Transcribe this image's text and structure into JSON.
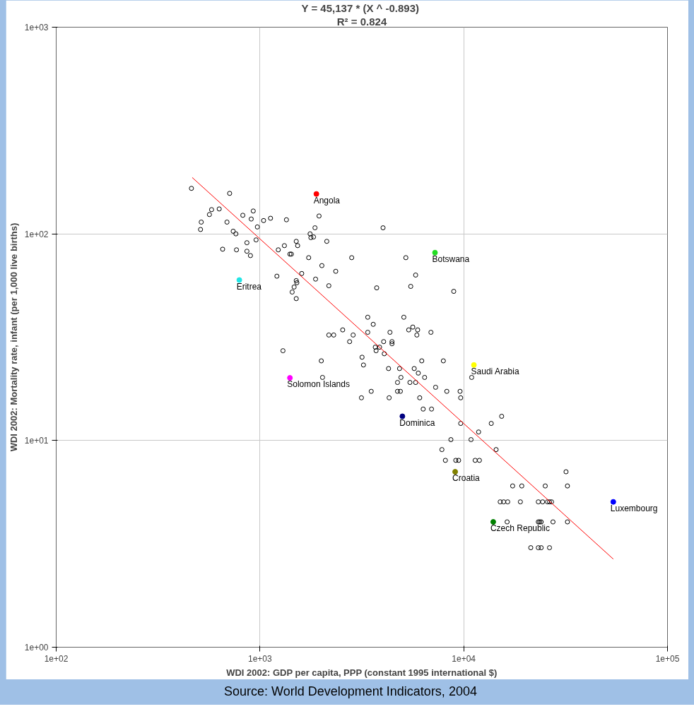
{
  "chart_data": {
    "type": "scatter",
    "title": "Y = 45,137 *  (X ^ -0.893)",
    "subtitle": "R² = 0.824",
    "xlabel": "WDI 2002: GDP per capita, PPP (constant 1995 international $)",
    "ylabel": "WDI 2002: Mortality rate, infant (per 1,000 live births)",
    "annotations": [
      "Source: World Development Indicators, 2004"
    ],
    "log": "xy",
    "grid": true,
    "marker": "circle",
    "xlim": [
      100,
      100000
    ],
    "ylim": [
      1,
      1000
    ],
    "xticks": [
      {
        "value": 100,
        "label": "1e+02"
      },
      {
        "value": 1000,
        "label": "1e+03"
      },
      {
        "value": 10000,
        "label": "1e+04"
      },
      {
        "value": 100000,
        "label": "1e+05"
      }
    ],
    "yticks": [
      {
        "value": 1,
        "label": "1e+00"
      },
      {
        "value": 10,
        "label": "1e+01"
      },
      {
        "value": 100,
        "label": "1e+02"
      },
      {
        "value": 1000,
        "label": "1e+03"
      }
    ],
    "series": [
      {
        "color": "#000000",
        "x": [
          461,
          710,
          579,
          565,
          631,
          515,
          511,
          689,
          739,
          762,
          824,
          927,
          906,
          971,
          1042,
          1127,
          1349,
          1950,
          1862,
          1762,
          1832,
          1778,
          2128,
          4018,
          656,
          767,
          863,
          957,
          863,
          898,
          1230,
          1318,
          1507,
          1531,
          1403,
          1426,
          1734,
          2013,
          2820,
          2355,
          1603,
          1875,
          2178,
          1211,
          1507,
          1517,
          1471,
          1439,
          1507,
          3741,
          3381,
          5200,
          5808,
          5495,
          8933,
          5082,
          1297,
          2000,
          2028,
          2178,
          2301,
          2547,
          2866,
          2754,
          3597,
          3381,
          4345,
          4046,
          4446,
          4446,
          3681,
          3864,
          3715,
          4074,
          3170,
          3221,
          4276,
          4842,
          4920,
          4732,
          3516,
          3148,
          4305,
          4732,
          4887,
          5370,
          5623,
          5445,
          5943,
          5888,
          6902,
          6223,
          7943,
          5715,
          5984,
          6427,
          5808,
          7278,
          8260,
          9594,
          6081,
          9661,
          6324,
          6950,
          10940,
          9661,
          13650,
          15350,
          11830,
          8650,
          10860,
          7816,
          14420,
          8128,
          9141,
          9441,
          11380,
          11940,
          31770,
          17380,
          19270,
          25120,
          32280,
          15100,
          15700,
          16440,
          18970,
          23230,
          24380,
          25760,
          26360,
          26980,
          16330,
          23230,
          23600,
          23990,
          27420,
          32280,
          21330,
          23230,
          23990,
          26360
        ],
        "values": [
          166,
          157,
          131,
          124,
          132,
          114,
          105,
          114,
          103,
          100,
          123,
          129,
          118,
          108,
          116,
          119,
          117,
          122,
          107,
          100,
          96.6,
          95.9,
          92,
          107,
          84.3,
          83.7,
          90.6,
          93.5,
          82.4,
          78.5,
          83.7,
          87.7,
          92,
          87.7,
          79.8,
          79.8,
          76.7,
          70.2,
          76.7,
          65.9,
          64.3,
          60.4,
          56.1,
          62.4,
          59.4,
          58,
          55.3,
          52.3,
          48.6,
          54.8,
          39.5,
          76.7,
          63.2,
          55.7,
          52.7,
          39.5,
          27.2,
          24.3,
          20.2,
          32.4,
          32.4,
          34.3,
          32.4,
          30.1,
          36.5,
          33.4,
          33.4,
          30.1,
          30.1,
          29.4,
          28.3,
          28.3,
          27.2,
          26.3,
          25.3,
          23.2,
          22.3,
          22.3,
          20.2,
          19.1,
          17.3,
          16.1,
          16.1,
          17.3,
          17.3,
          34.3,
          35.4,
          19.1,
          34.3,
          32.4,
          33.4,
          24.3,
          24.3,
          22.3,
          21.2,
          20.2,
          19.1,
          18.1,
          17.3,
          17.3,
          16.1,
          16.1,
          14.2,
          14.2,
          20.2,
          12.1,
          12.1,
          13.1,
          11,
          10.1,
          10.1,
          9.04,
          9.04,
          8.02,
          8.02,
          8.02,
          8.02,
          8.02,
          7.06,
          6.03,
          6.03,
          6.03,
          6.03,
          5.05,
          5.05,
          5.05,
          5.05,
          5.05,
          5.05,
          5.05,
          5.05,
          5.05,
          4.04,
          4.04,
          4.04,
          4.04,
          4.04,
          4.04,
          3.03,
          3.03,
          3.03,
          3.03
        ]
      },
      {
        "name": "Angola",
        "color": "#ff0000",
        "x": [
          1892
        ],
        "values": [
          156
        ]
      },
      {
        "name": "Botswana",
        "color": "#22dd22",
        "x": [
          7228
        ],
        "values": [
          81.1
        ]
      },
      {
        "name": "Eritrea",
        "color": "#22e5e5",
        "x": [
          792
        ],
        "values": [
          59.8
        ]
      },
      {
        "name": "Saudi Arabia",
        "color": "#ffff00",
        "x": [
          11220
        ],
        "values": [
          23.2
        ]
      },
      {
        "name": "Solomon Islands",
        "color": "#ff00ff",
        "x": [
          1403
        ],
        "values": [
          20.1
        ]
      },
      {
        "name": "Dominica",
        "color": "#000080",
        "x": [
          5000
        ],
        "values": [
          13.1
        ]
      },
      {
        "name": "Croatia",
        "color": "#808000",
        "x": [
          9078
        ],
        "values": [
          7.06
        ]
      },
      {
        "name": "Luxembourg",
        "color": "#0000ff",
        "x": [
          54200
        ],
        "values": [
          5.05
        ]
      },
      {
        "name": "Czech Republic",
        "color": "#008000",
        "x": [
          13960
        ],
        "values": [
          4.04
        ]
      },
      {
        "type": "line",
        "marker": "none",
        "color": "#ff0000",
        "x": [
          465,
          54200
        ],
        "values": [
          187.4,
          2.67
        ]
      }
    ]
  }
}
